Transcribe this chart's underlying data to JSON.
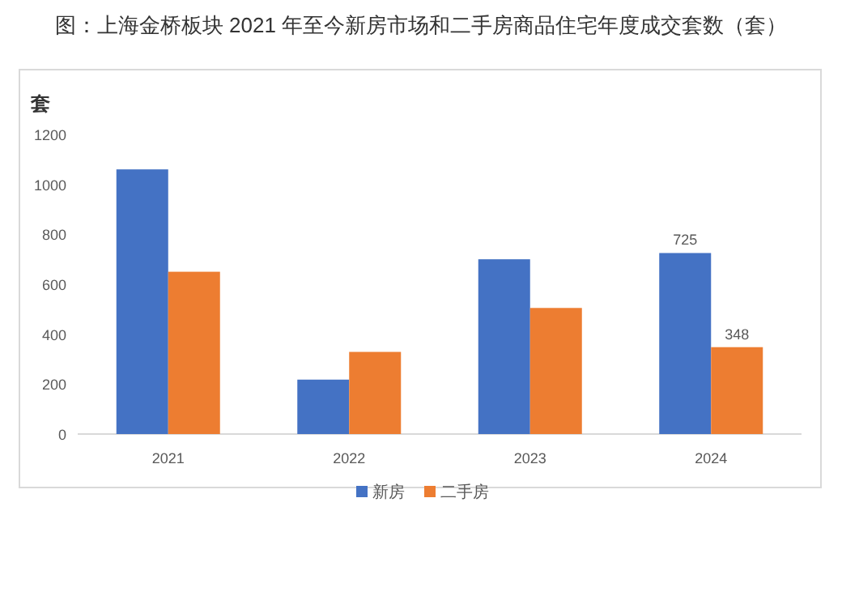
{
  "chart_data": {
    "type": "bar",
    "title": "图：上海金桥板块 2021 年至今新房市场和二手房商品住宅年度成交套数（套）",
    "ylabel": "套",
    "categories": [
      "2021",
      "2022",
      "2023",
      "2024"
    ],
    "series": [
      {
        "name": "新房",
        "color": "#4472c4",
        "values": [
          1060,
          218,
          700,
          725
        ],
        "value_labels": [
          null,
          null,
          null,
          "725"
        ]
      },
      {
        "name": "二手房",
        "color": "#ed7d31",
        "values": [
          650,
          329,
          505,
          348
        ],
        "value_labels": [
          null,
          null,
          null,
          "348"
        ]
      }
    ],
    "ylim": [
      0,
      1200
    ],
    "yticks": [
      0,
      200,
      400,
      600,
      800,
      1000,
      1200
    ],
    "grid": false,
    "legend": "bottom"
  }
}
